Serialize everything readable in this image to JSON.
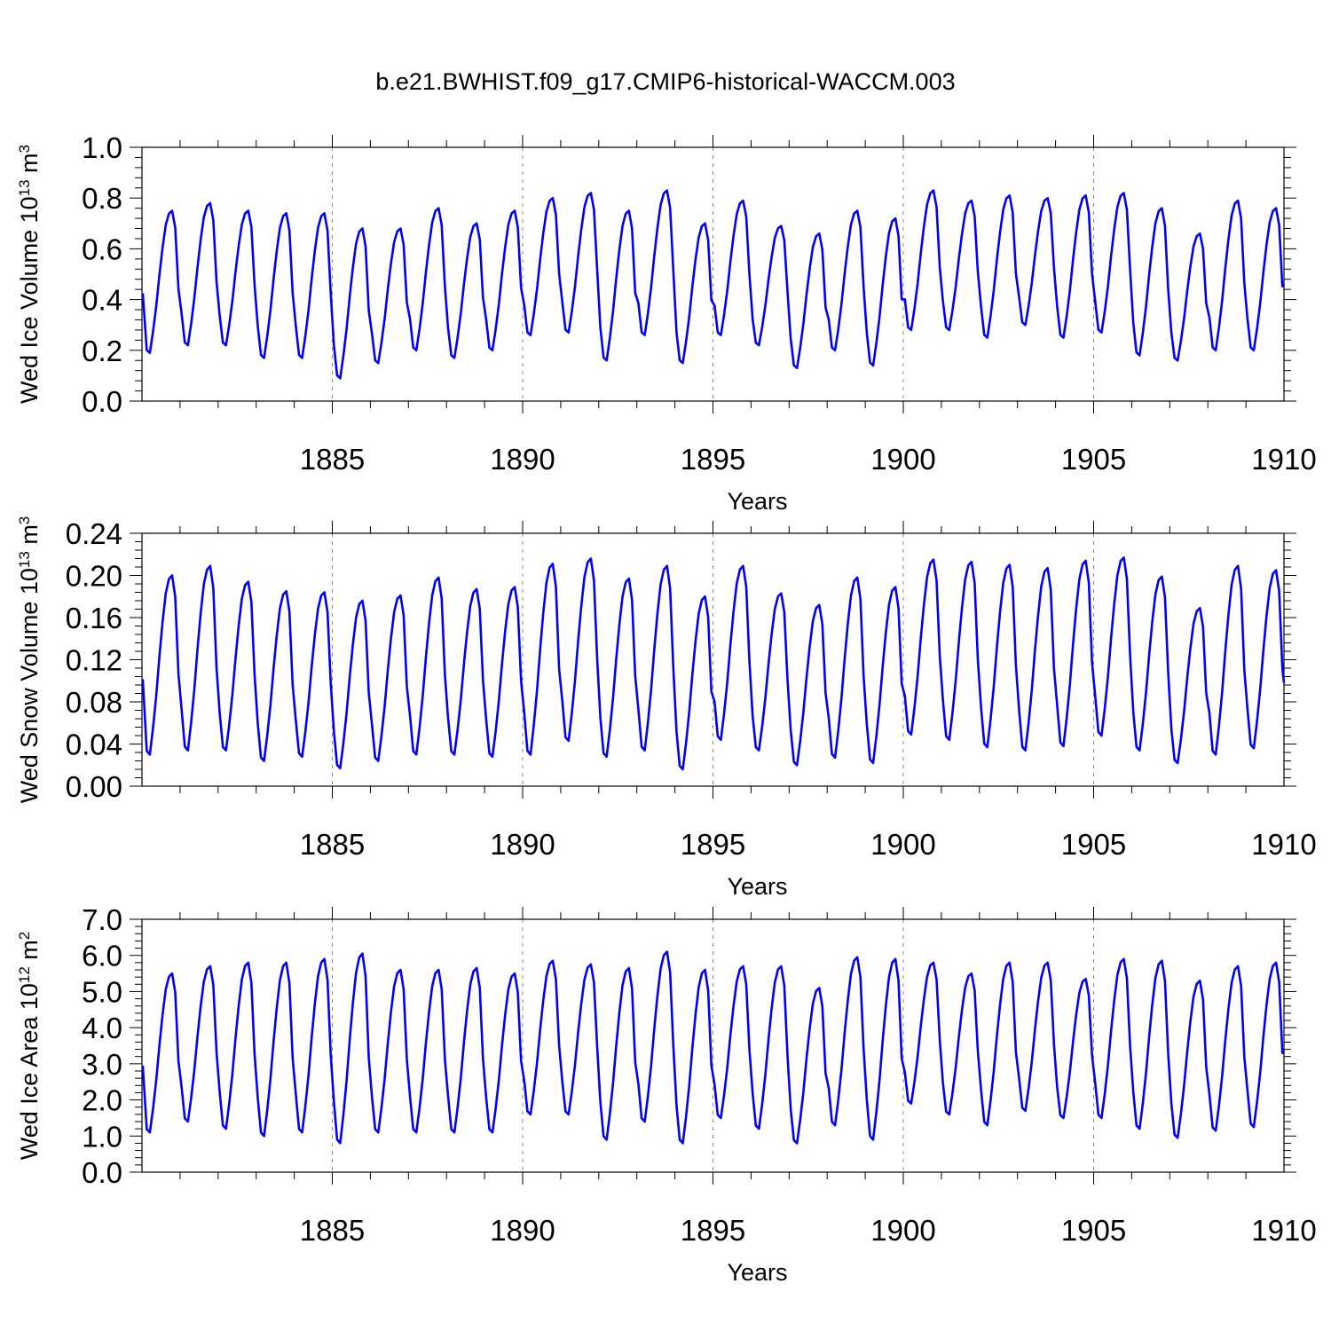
{
  "title": "b.e21.BWHIST.f09_g17.CMIP6-historical-WACCM.003",
  "style": {
    "line_color": "#0000ff",
    "axis_color": "#000000",
    "gridline_style": "dashed-gray"
  },
  "chart_data": [
    {
      "type": "line",
      "xlabel": "Years",
      "ylabel": {
        "prefix": "Wed Ice Volume 10",
        "exponent": "13",
        "unit": " m",
        "unit_exponent": "3"
      },
      "ylim": [
        0,
        1.0
      ],
      "yticks": [
        "0.0",
        "0.2",
        "0.4",
        "0.6",
        "0.8",
        "1.0"
      ],
      "xlim": [
        1880,
        1910
      ],
      "xticks": [
        "1885",
        "1890",
        "1895",
        "1900",
        "1905",
        "1910"
      ],
      "grid_x": [
        1885,
        1890,
        1895,
        1900,
        1905
      ],
      "series": [
        {
          "start_year": 1880,
          "mins": [
            0.19,
            0.22,
            0.22,
            0.17,
            0.17,
            0.09,
            0.15,
            0.2,
            0.17,
            0.2,
            0.26,
            0.27,
            0.16,
            0.26,
            0.15,
            0.26,
            0.22,
            0.13,
            0.2,
            0.14,
            0.28,
            0.28,
            0.25,
            0.3,
            0.25,
            0.27,
            0.18,
            0.16,
            0.2,
            0.2
          ],
          "maxs": [
            0.75,
            0.78,
            0.75,
            0.74,
            0.74,
            0.68,
            0.68,
            0.76,
            0.7,
            0.75,
            0.8,
            0.82,
            0.75,
            0.83,
            0.7,
            0.79,
            0.69,
            0.66,
            0.75,
            0.72,
            0.83,
            0.79,
            0.81,
            0.8,
            0.81,
            0.82,
            0.76,
            0.66,
            0.79,
            0.76
          ],
          "end_value": 0.46
        }
      ]
    },
    {
      "type": "line",
      "xlabel": "Years",
      "ylabel": {
        "prefix": "Wed Snow Volume 10",
        "exponent": "13",
        "unit": " m",
        "unit_exponent": "3"
      },
      "ylim": [
        0,
        0.24
      ],
      "yticks": [
        "0.00",
        "0.04",
        "0.08",
        "0.12",
        "0.16",
        "0.20",
        "0.24"
      ],
      "xlim": [
        1880,
        1910
      ],
      "xticks": [
        "1885",
        "1890",
        "1895",
        "1900",
        "1905",
        "1910"
      ],
      "grid_x": [
        1885,
        1890,
        1895,
        1900,
        1905
      ],
      "series": [
        {
          "start_year": 1880,
          "mins": [
            0.03,
            0.034,
            0.034,
            0.024,
            0.028,
            0.017,
            0.024,
            0.03,
            0.03,
            0.028,
            0.03,
            0.043,
            0.028,
            0.034,
            0.016,
            0.044,
            0.034,
            0.02,
            0.027,
            0.022,
            0.049,
            0.044,
            0.037,
            0.034,
            0.038,
            0.048,
            0.034,
            0.022,
            0.03,
            0.036
          ],
          "maxs": [
            0.2,
            0.209,
            0.194,
            0.185,
            0.184,
            0.176,
            0.181,
            0.198,
            0.187,
            0.189,
            0.211,
            0.216,
            0.197,
            0.209,
            0.18,
            0.209,
            0.183,
            0.172,
            0.198,
            0.189,
            0.215,
            0.213,
            0.21,
            0.207,
            0.214,
            0.217,
            0.199,
            0.169,
            0.209,
            0.205
          ],
          "end_value": 0.098
        }
      ]
    },
    {
      "type": "line",
      "xlabel": "Years",
      "ylabel": {
        "prefix": "Wed Ice Area 10",
        "exponent": "12",
        "unit": " m",
        "unit_exponent": "2"
      },
      "ylim": [
        0,
        7.0
      ],
      "yticks": [
        "0.0",
        "1.0",
        "2.0",
        "3.0",
        "4.0",
        "5.0",
        "6.0",
        "7.0"
      ],
      "xlim": [
        1880,
        1910
      ],
      "xticks": [
        "1885",
        "1890",
        "1895",
        "1900",
        "1905",
        "1910"
      ],
      "grid_x": [
        1885,
        1890,
        1895,
        1900,
        1905
      ],
      "series": [
        {
          "start_year": 1880,
          "mins": [
            1.1,
            1.4,
            1.2,
            1.0,
            1.1,
            0.8,
            1.1,
            1.1,
            1.1,
            1.1,
            1.6,
            1.6,
            0.9,
            1.4,
            0.8,
            1.5,
            1.2,
            0.8,
            1.3,
            0.9,
            1.9,
            1.6,
            1.3,
            1.7,
            1.5,
            1.5,
            1.2,
            0.95,
            1.15,
            1.25
          ],
          "maxs": [
            5.5,
            5.7,
            5.8,
            5.8,
            5.9,
            6.05,
            5.6,
            5.6,
            5.65,
            5.5,
            5.85,
            5.75,
            5.65,
            6.1,
            5.6,
            5.7,
            5.7,
            5.1,
            5.95,
            5.9,
            5.8,
            5.5,
            5.8,
            5.8,
            5.35,
            5.9,
            5.85,
            5.3,
            5.7,
            5.8
          ],
          "end_value": 3.3
        }
      ]
    }
  ]
}
